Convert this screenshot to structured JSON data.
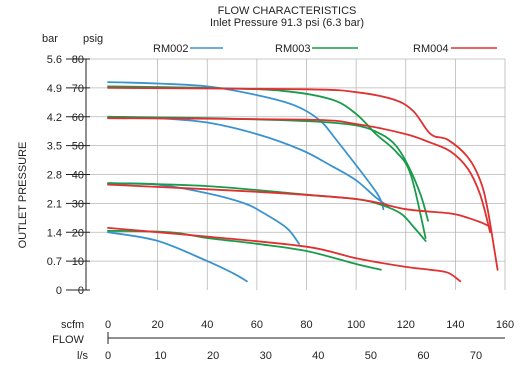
{
  "chart_data": {
    "type": "line",
    "title": "FLOW CHARACTERISTICS",
    "subtitle": "Inlet Pressure 91.3 psi (6.3 bar)",
    "ylabel": "OUTLET PRESSURE",
    "xlabel": "FLOW",
    "y_unit_bar": "bar",
    "y_unit_psig": "psig",
    "x_unit_scfm": "scfm",
    "x_unit_ls": "l/s",
    "bar_ticks": [
      "5.6",
      "4.9",
      "4.2",
      "3.5",
      "2.8",
      "2.1",
      "1.4",
      "0.7",
      "0"
    ],
    "psig_ticks": [
      "80",
      "70",
      "60",
      "50",
      "40",
      "30",
      "20",
      "10",
      "0"
    ],
    "scfm_ticks": [
      "0",
      "20",
      "40",
      "60",
      "80",
      "100",
      "120",
      "140",
      "160"
    ],
    "ls_ticks": [
      "0",
      "10",
      "20",
      "30",
      "40",
      "50",
      "60",
      "70"
    ],
    "ylim": [
      0,
      80
    ],
    "xlim": [
      0,
      160
    ],
    "legend_position": "top",
    "series": [
      {
        "name": "RM002",
        "color": "#3a93d0",
        "curves": [
          {
            "x": [
              0,
              20,
              40,
              60,
              75,
              85,
              92,
              108,
              111
            ],
            "y": [
              72,
              71.5,
              70.5,
              67.5,
              64,
              59,
              52,
              34,
              28
            ]
          },
          {
            "x": [
              0,
              20,
              40,
              60,
              78,
              90,
              100,
              108,
              113
            ],
            "y": [
              60,
              59.5,
              58,
              54,
              48.5,
              43,
              38,
              32,
              29
            ]
          },
          {
            "x": [
              0,
              20,
              40,
              55,
              62,
              72,
              77
            ],
            "y": [
              37,
              36.5,
              33.5,
              30,
              27,
              21.5,
              16
            ]
          },
          {
            "x": [
              0,
              20,
              40,
              50,
              56
            ],
            "y": [
              20,
              17,
              10,
              6,
              3
            ]
          }
        ]
      },
      {
        "name": "RM003",
        "color": "#1a9b4b",
        "curves": [
          {
            "x": [
              0,
              40,
              70,
              90,
              100,
              108,
              116,
              122,
              128
            ],
            "y": [
              70.5,
              70,
              69,
              66,
              61,
              54,
              48,
              40,
              18
            ]
          },
          {
            "x": [
              0,
              40,
              80,
              100,
              110,
              116,
              121,
              126,
              129
            ],
            "y": [
              60,
              59.5,
              58.5,
              57,
              54,
              50,
              43,
              33,
              24
            ]
          },
          {
            "x": [
              0,
              40,
              80,
              100,
              110,
              118,
              123,
              128
            ],
            "y": [
              37,
              36,
              33,
              31.5,
              29.5,
              26.5,
              22,
              17
            ]
          },
          {
            "x": [
              0,
              25,
              40,
              60,
              80,
              100,
              110
            ],
            "y": [
              20.5,
              20,
              18,
              16,
              13.5,
              9,
              7
            ]
          }
        ]
      },
      {
        "name": "RM004",
        "color": "#e03030",
        "curves": [
          {
            "x": [
              0,
              80,
              100,
              115,
              123,
              130,
              137,
              145,
              150,
              153,
              157
            ],
            "y": [
              70,
              69.5,
              68.5,
              66,
              62,
              54,
              52,
              46,
              38,
              28,
              7
            ]
          },
          {
            "x": [
              0,
              80,
              100,
              120,
              130,
              138,
              145,
              150,
              154
            ],
            "y": [
              59.5,
              59,
              57.5,
              54,
              51,
              48,
              42,
              33,
              20
            ]
          },
          {
            "x": [
              0,
              60,
              100,
              120,
              138,
              145,
              150,
              154
            ],
            "y": [
              36.5,
              34,
              31.5,
              28,
              26.5,
              25,
              23.5,
              22
            ]
          },
          {
            "x": [
              0,
              40,
              80,
              100,
              120,
              130,
              137,
              142
            ],
            "y": [
              21.5,
              18.5,
              15,
              11,
              8,
              7,
              6,
              3
            ]
          }
        ]
      }
    ]
  }
}
